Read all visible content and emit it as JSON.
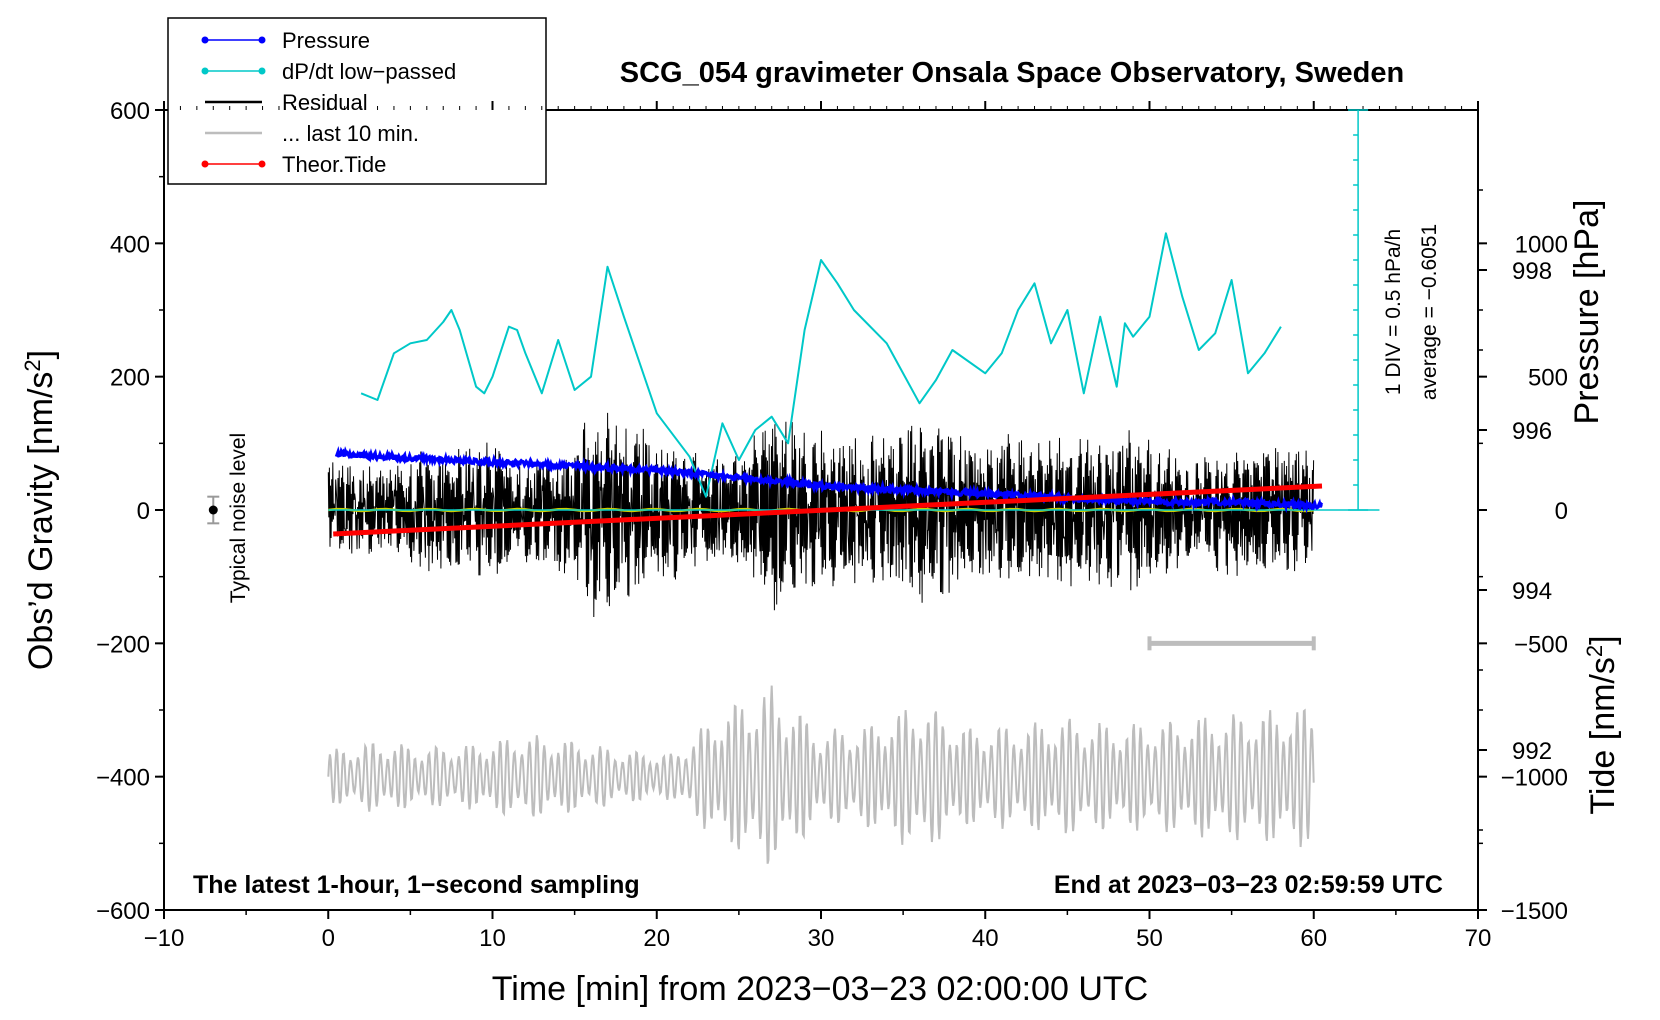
{
  "chart_data": {
    "type": "line",
    "title": "SCG_054 gravimeter Onsala Space Observatory, Sweden",
    "xlabel": "Time [min] from 2023−03−23 02:00:00 UTC",
    "ylabel": "Obs’d Gravity [nm/s²]",
    "ylabel_base": "Obs’d Gravity [nm/s",
    "ylabel_sup": "2",
    "ylabel_tail": "]",
    "y2label": "Pressure [hPa]",
    "y3label_base": "Tide [nm/s",
    "y3label_sup": "2",
    "y3label_tail": "]",
    "xlim": [
      -10,
      70
    ],
    "ylim": [
      -600,
      600
    ],
    "pressure_lim": [
      990,
      1000
    ],
    "tide_lim": [
      -1500,
      1500
    ],
    "x_ticks": [
      -10,
      0,
      10,
      20,
      30,
      40,
      50,
      60,
      70
    ],
    "x_tick_labels": [
      "−10",
      "0",
      "10",
      "20",
      "30",
      "40",
      "50",
      "60",
      "70"
    ],
    "y_ticks": [
      -600,
      -400,
      -200,
      0,
      200,
      400,
      600
    ],
    "y_tick_labels": [
      "−600",
      "−400",
      "−200",
      "0",
      "200",
      "400",
      "600"
    ],
    "pressure_ticks": [
      992,
      994,
      996,
      998
    ],
    "pressure_tick_labels": [
      "992",
      "994",
      "996",
      "998"
    ],
    "tide_ticks": [
      -1500,
      -1000,
      -500,
      0,
      500,
      1000
    ],
    "tide_tick_labels": [
      "−1500",
      "−1000",
      "−500",
      "0",
      "500",
      "1000"
    ],
    "legend": {
      "placement": "top-left",
      "entries": [
        {
          "label": "Pressure",
          "color": "#0000ff",
          "marker": true
        },
        {
          "label": "dP/dt low−passed",
          "color": "#00c8c8",
          "marker": true
        },
        {
          "label": "Residual",
          "color": "#000000",
          "marker": false
        },
        {
          "label": "... last 10 min.",
          "color": "#bdbdbd",
          "marker": false
        },
        {
          "label": "Theor.Tide",
          "color": "#ff0000",
          "marker": true
        }
      ]
    },
    "series": [
      {
        "name": "Pressure",
        "units": "hPa",
        "color": "#0000ff",
        "x": [
          0.5,
          5,
          10,
          15,
          20,
          25,
          28,
          30,
          35,
          40,
          45,
          50,
          55,
          60.5
        ],
        "values": [
          995.7,
          995.65,
          995.6,
          995.55,
          995.5,
          995.4,
          995.35,
          995.3,
          995.25,
          995.2,
          995.15,
          995.1,
          995.1,
          995.05
        ]
      },
      {
        "name": "dP/dt low−passed",
        "units": "nm/s² (plot scale)",
        "color": "#00c8c8",
        "x": [
          2,
          3,
          4,
          5,
          6,
          7,
          7.5,
          8,
          9,
          9.5,
          10,
          11,
          11.5,
          12,
          13,
          14,
          15,
          16,
          17,
          18,
          20,
          22,
          23,
          24,
          25,
          26,
          27,
          28,
          29,
          30,
          31,
          32,
          34,
          36,
          37,
          38,
          40,
          41,
          42,
          43,
          44,
          45,
          46,
          47,
          48,
          48.5,
          49,
          50,
          51,
          52,
          53,
          54,
          55,
          56,
          57,
          58
        ],
        "values": [
          175,
          165,
          235,
          250,
          255,
          282,
          300,
          270,
          185,
          175,
          200,
          275,
          270,
          235,
          175,
          255,
          180,
          200,
          365,
          290,
          145,
          80,
          20,
          130,
          75,
          120,
          140,
          100,
          270,
          375,
          340,
          300,
          250,
          160,
          195,
          240,
          205,
          235,
          300,
          340,
          250,
          300,
          175,
          290,
          185,
          280,
          260,
          290,
          415,
          320,
          240,
          265,
          345,
          205,
          235,
          275
        ]
      },
      {
        "name": "Residual",
        "units": "nm/s²",
        "color": "#000000",
        "x": [
          0,
          2,
          4,
          6,
          8,
          10,
          12,
          14,
          16,
          17,
          19,
          21,
          23,
          25,
          27,
          29,
          31,
          33,
          35,
          37,
          39,
          41,
          43,
          45,
          47,
          49,
          51,
          53,
          55,
          57,
          60
        ],
        "values": [
          80,
          65,
          70,
          95,
          95,
          110,
          80,
          90,
          165,
          175,
          130,
          110,
          80,
          85,
          155,
          135,
          120,
          115,
          135,
          150,
          110,
          115,
          110,
          125,
          120,
          125,
          100,
          75,
          110,
          100,
          95
        ]
      },
      {
        "name": "... last 10 min.",
        "units": "nm/s² (expanded)",
        "color": "#bdbdbd",
        "x": [
          0,
          3,
          6,
          9,
          12,
          15,
          18,
          21,
          24,
          27,
          30,
          33,
          36,
          39,
          42,
          45,
          48,
          51,
          54,
          57,
          60
        ],
        "values": [
          40,
          55,
          45,
          50,
          65,
          55,
          40,
          35,
          105,
          140,
          70,
          80,
          115,
          75,
          80,
          90,
          80,
          85,
          95,
          100,
          110
        ]
      },
      {
        "name": "Theor.Tide",
        "units": "nm/s²",
        "color": "#ff0000",
        "x": [
          0.3,
          60.5
        ],
        "values": [
          -90,
          90
        ]
      }
    ],
    "annotations": {
      "pressure_scale_line": 995,
      "dpdt_scale": "1 DIV = 0.5 hPa/h",
      "dpdt_average": "average = −0.6051",
      "noise_label": "Typical noise level",
      "noise_level": [
        -20,
        20
      ],
      "zero_level_color": "#cccc00",
      "ten_minute_bar": [
        50,
        60
      ],
      "left_note": "The latest 1-hour, 1−second sampling",
      "right_note": "End at 2023−03−23 02:59:59 UTC"
    },
    "grid": false
  }
}
